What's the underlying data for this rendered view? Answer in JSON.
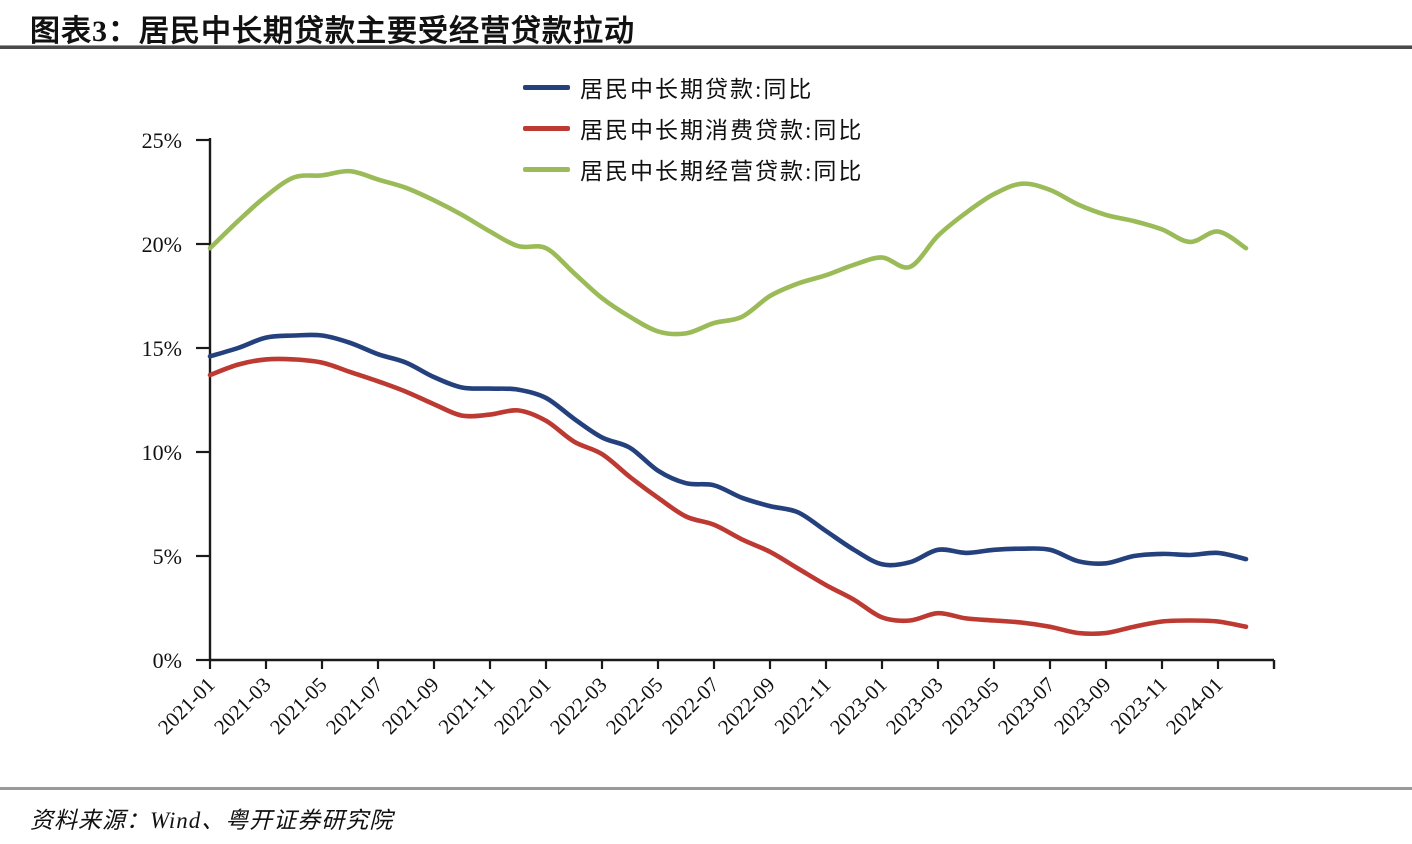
{
  "header": {
    "title": "图表3：居民中长期贷款主要受经营贷款拉动"
  },
  "footer": {
    "source": "资料来源：Wind、粤开证券研究院"
  },
  "chart_data": {
    "type": "line",
    "title": "图表3：居民中长期贷款主要受经营贷款拉动",
    "x": [
      "2021-01",
      "2021-02",
      "2021-03",
      "2021-04",
      "2021-05",
      "2021-06",
      "2021-07",
      "2021-08",
      "2021-09",
      "2021-10",
      "2021-11",
      "2021-12",
      "2022-01",
      "2022-02",
      "2022-03",
      "2022-04",
      "2022-05",
      "2022-06",
      "2022-07",
      "2022-08",
      "2022-09",
      "2022-10",
      "2022-11",
      "2022-12",
      "2023-01",
      "2023-02",
      "2023-03",
      "2023-04",
      "2023-05",
      "2023-06",
      "2023-07",
      "2023-08",
      "2023-09",
      "2023-10",
      "2023-11",
      "2023-12",
      "2024-01",
      "2024-02"
    ],
    "x_tick_labels": [
      "2021-01",
      "2021-03",
      "2021-05",
      "2021-07",
      "2021-09",
      "2021-11",
      "2022-01",
      "2022-03",
      "2022-05",
      "2022-07",
      "2022-09",
      "2022-11",
      "2023-01",
      "2023-03",
      "2023-05",
      "2023-07",
      "2023-09",
      "2023-11",
      "2024-01"
    ],
    "y_tick_labels": [
      "0%",
      "5%",
      "10%",
      "15%",
      "20%",
      "25%"
    ],
    "y_tick_values": [
      0,
      5,
      10,
      15,
      20,
      25
    ],
    "ylim": [
      0,
      25
    ],
    "grid": false,
    "legend_position": "top-center",
    "axis_color": "#1a1a1a",
    "series": [
      {
        "name": "居民中长期贷款:同比",
        "color": "#24417e",
        "values": [
          14.6,
          15.0,
          15.5,
          15.6,
          15.6,
          15.25,
          14.7,
          14.3,
          13.6,
          13.1,
          13.05,
          13.0,
          12.6,
          11.6,
          10.7,
          10.2,
          9.1,
          8.5,
          8.4,
          7.8,
          7.4,
          7.1,
          6.2,
          5.3,
          4.6,
          4.7,
          5.3,
          5.15,
          5.3,
          5.35,
          5.3,
          4.75,
          4.65,
          5.0,
          5.1,
          5.05,
          5.15,
          4.85
        ]
      },
      {
        "name": "居民中长期消费贷款:同比",
        "color": "#bd3a32",
        "values": [
          13.7,
          14.2,
          14.45,
          14.45,
          14.3,
          13.85,
          13.4,
          12.9,
          12.3,
          11.75,
          11.8,
          12.0,
          11.5,
          10.5,
          9.9,
          8.8,
          7.8,
          6.9,
          6.5,
          5.8,
          5.2,
          4.4,
          3.6,
          2.9,
          2.05,
          1.9,
          2.25,
          2.0,
          1.9,
          1.8,
          1.6,
          1.3,
          1.3,
          1.6,
          1.85,
          1.9,
          1.85,
          1.6
        ]
      },
      {
        "name": "居民中长期经营贷款:同比",
        "color": "#9bbb59",
        "values": [
          19.8,
          21.1,
          22.3,
          23.2,
          23.3,
          23.5,
          23.1,
          22.7,
          22.1,
          21.4,
          20.6,
          19.9,
          19.8,
          18.6,
          17.4,
          16.5,
          15.8,
          15.7,
          16.2,
          16.5,
          17.5,
          18.1,
          18.5,
          19.0,
          19.35,
          18.9,
          20.4,
          21.5,
          22.4,
          22.9,
          22.6,
          21.9,
          21.4,
          21.1,
          20.7,
          20.1,
          20.6,
          19.8
        ]
      }
    ]
  }
}
